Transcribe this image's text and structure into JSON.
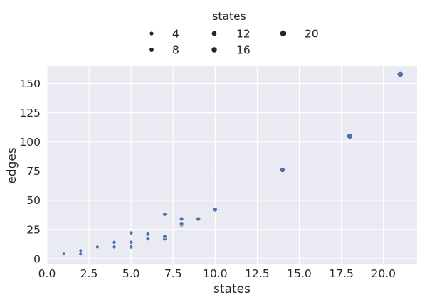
{
  "chart_data": {
    "type": "scatter",
    "xlabel": "states",
    "ylabel": "edges",
    "xlim": [
      0,
      22.0
    ],
    "ylim": [
      -5,
      165
    ],
    "x_ticks": [
      0.0,
      2.5,
      5.0,
      7.5,
      10.0,
      12.5,
      15.0,
      17.5,
      20.0
    ],
    "x_tick_labels": [
      "0.0",
      "2.5",
      "5.0",
      "7.5",
      "10.0",
      "12.5",
      "15.0",
      "17.5",
      "20.0"
    ],
    "y_ticks": [
      0,
      25,
      50,
      75,
      100,
      125,
      150
    ],
    "y_tick_labels": [
      "0",
      "25",
      "50",
      "75",
      "100",
      "125",
      "150"
    ],
    "grid": true,
    "point_color": "#4c72b0",
    "background_color": "#eaeaf2",
    "size_encoding": "states",
    "legend": {
      "title": "states",
      "placement": "top-center",
      "entries": [
        {
          "label": "4",
          "size": 4
        },
        {
          "label": "8",
          "size": 8
        },
        {
          "label": "12",
          "size": 12
        },
        {
          "label": "16",
          "size": 16
        },
        {
          "label": "20",
          "size": 20
        }
      ]
    },
    "points": [
      {
        "x": 1,
        "y": 4
      },
      {
        "x": 2,
        "y": 4
      },
      {
        "x": 2,
        "y": 7
      },
      {
        "x": 3,
        "y": 10
      },
      {
        "x": 4,
        "y": 10
      },
      {
        "x": 4,
        "y": 14
      },
      {
        "x": 5,
        "y": 10
      },
      {
        "x": 5,
        "y": 14
      },
      {
        "x": 5,
        "y": 22
      },
      {
        "x": 6,
        "y": 17
      },
      {
        "x": 6,
        "y": 21
      },
      {
        "x": 7,
        "y": 17
      },
      {
        "x": 7,
        "y": 19
      },
      {
        "x": 7,
        "y": 38
      },
      {
        "x": 8,
        "y": 29
      },
      {
        "x": 8,
        "y": 30
      },
      {
        "x": 8,
        "y": 34
      },
      {
        "x": 9,
        "y": 34
      },
      {
        "x": 10,
        "y": 42
      },
      {
        "x": 14,
        "y": 76
      },
      {
        "x": 18,
        "y": 105
      },
      {
        "x": 21,
        "y": 158
      }
    ]
  }
}
